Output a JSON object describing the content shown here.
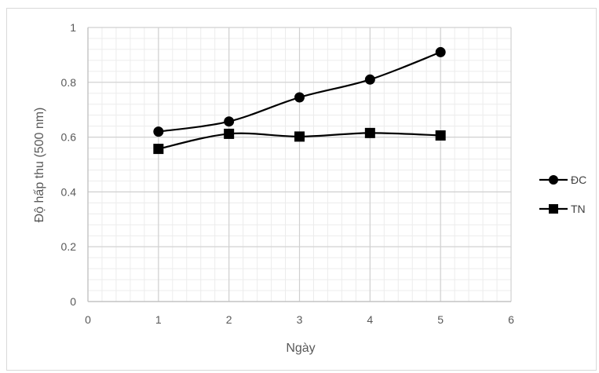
{
  "chart_data": {
    "type": "line",
    "xlabel": "Ngày",
    "ylabel": "Độ hấp thu (500 nm)",
    "xlim": [
      0,
      6
    ],
    "ylim": [
      0,
      1
    ],
    "x_ticks": [
      "0",
      "1",
      "2",
      "3",
      "4",
      "5",
      "6"
    ],
    "y_ticks": [
      "0",
      "0.2",
      "0.4",
      "0.6",
      "0.8",
      "1"
    ],
    "grid": true,
    "legend_position": "right",
    "x": [
      1,
      2,
      3,
      4,
      5
    ],
    "series": [
      {
        "name": "ĐC",
        "marker": "circle",
        "color": "#000000",
        "values": [
          0.62,
          0.657,
          0.745,
          0.81,
          0.91
        ]
      },
      {
        "name": "TN",
        "marker": "square",
        "color": "#000000",
        "values": [
          0.557,
          0.612,
          0.602,
          0.615,
          0.606
        ]
      }
    ]
  }
}
